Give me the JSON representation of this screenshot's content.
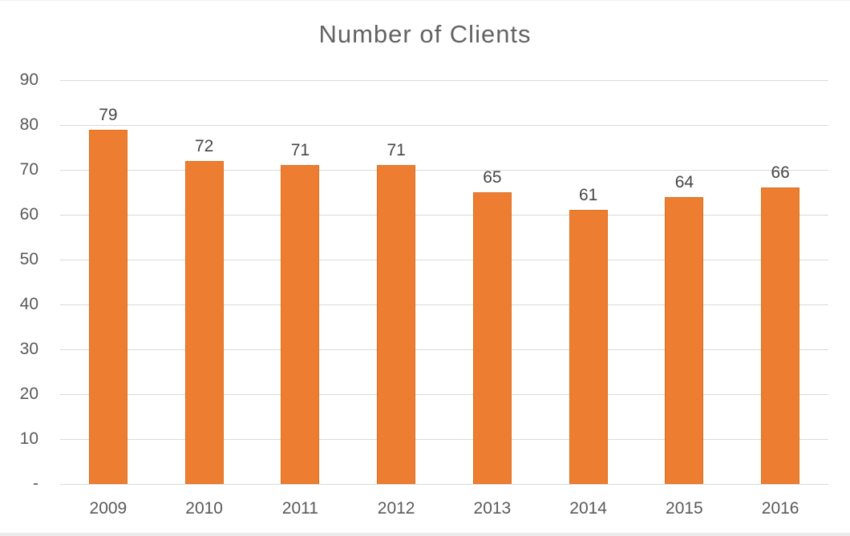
{
  "chart_data": {
    "type": "bar",
    "title": "Number of Clients",
    "categories": [
      "2009",
      "2010",
      "2011",
      "2012",
      "2013",
      "2014",
      "2015",
      "2016"
    ],
    "values": [
      79,
      72,
      71,
      71,
      65,
      61,
      64,
      66
    ],
    "xlabel": "",
    "ylabel": "",
    "ylim": [
      0,
      90
    ],
    "y_ticks": [
      {
        "value": 90,
        "label": "90"
      },
      {
        "value": 80,
        "label": "80"
      },
      {
        "value": 70,
        "label": "70"
      },
      {
        "value": 60,
        "label": "60"
      },
      {
        "value": 50,
        "label": "50"
      },
      {
        "value": 40,
        "label": "40"
      },
      {
        "value": 30,
        "label": "30"
      },
      {
        "value": 20,
        "label": "20"
      },
      {
        "value": 10,
        "label": "10"
      },
      {
        "value": 0,
        "label": "-"
      }
    ],
    "grid": true,
    "legend": "none",
    "value_labels_shown": true
  },
  "colors": {
    "bar": "#ED7D31",
    "bar_border": "#E0701F",
    "gridline": "#D9D9D9",
    "axis_text": "#595959",
    "title_text": "#636363",
    "value_text": "#464646",
    "background": "#FFFFFF"
  }
}
